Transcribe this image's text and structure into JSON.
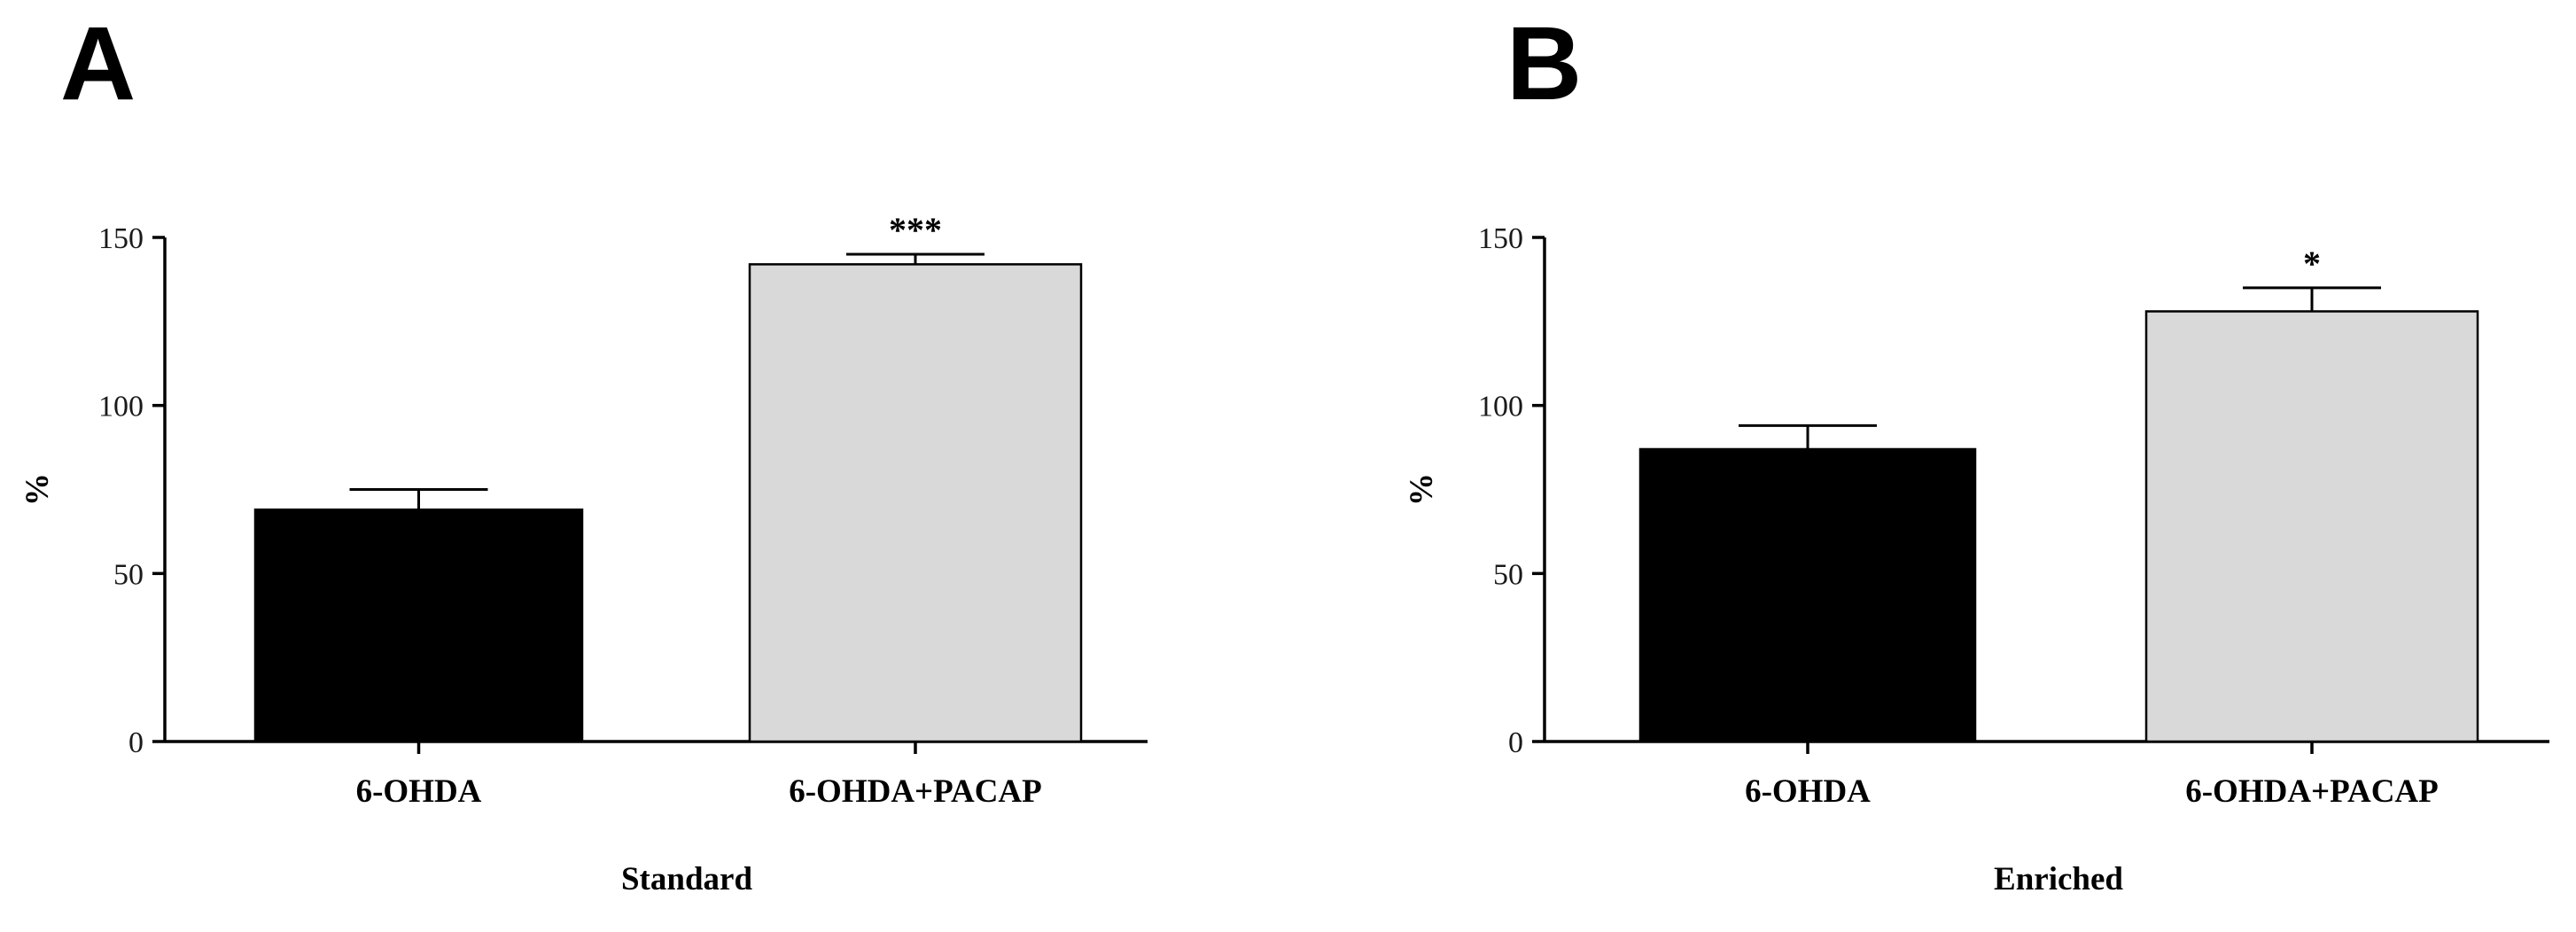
{
  "panels": [
    {
      "letter": "A"
    },
    {
      "letter": "B"
    }
  ],
  "chart_data": [
    {
      "type": "bar",
      "title": "",
      "xlabel": "Standard",
      "ylabel": "%",
      "ylim": [
        0,
        150
      ],
      "yticks": [
        0,
        50,
        100,
        150
      ],
      "categories": [
        "6-OHDA",
        "6-OHDA+PACAP"
      ],
      "values": [
        69,
        142
      ],
      "errors": [
        6,
        3
      ],
      "significance": [
        "",
        "***"
      ],
      "bar_colors": [
        "#000000",
        "#d9d9d9"
      ],
      "grid": false
    },
    {
      "type": "bar",
      "title": "",
      "xlabel": "Enriched",
      "ylabel": "%",
      "ylim": [
        0,
        150
      ],
      "yticks": [
        0,
        50,
        100,
        150
      ],
      "categories": [
        "6-OHDA",
        "6-OHDA+PACAP"
      ],
      "values": [
        87,
        128
      ],
      "errors": [
        7,
        7
      ],
      "significance": [
        "",
        "*"
      ],
      "bar_colors": [
        "#000000",
        "#d9d9d9"
      ],
      "grid": false
    }
  ]
}
